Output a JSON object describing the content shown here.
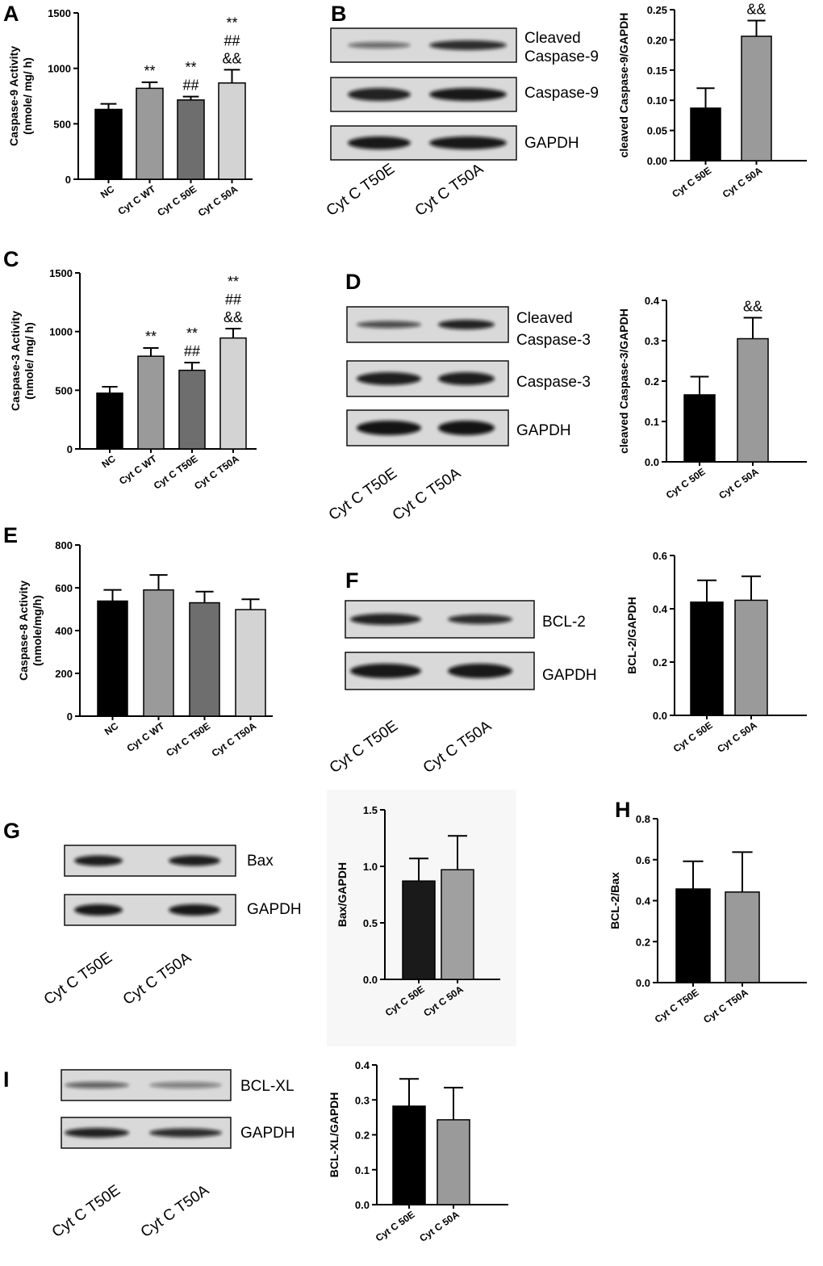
{
  "panel_labels": [
    "A",
    "B",
    "C",
    "D",
    "E",
    "F",
    "G",
    "H",
    "I"
  ],
  "chart_data": [
    {
      "id": "A",
      "type": "bar",
      "ylabel": "Caspase-9 Activity\n(nmole/ mg/ h)",
      "ylim": [
        0,
        1500
      ],
      "yticks": [
        "0",
        "500",
        "1000",
        "1500"
      ],
      "categories": [
        "NC",
        "Cyt C WT",
        "Cyt C 50E",
        "Cyt C 50A"
      ],
      "values": [
        630,
        820,
        715,
        868
      ],
      "errors": [
        50,
        55,
        30,
        120
      ],
      "colors": [
        "#000000",
        "#9a9a9a",
        "#6e6e6e",
        "#d3d3d3"
      ],
      "annotations": [
        [],
        [
          "**"
        ],
        [
          "**",
          "##"
        ],
        [
          "**",
          "##",
          "&&"
        ]
      ]
    },
    {
      "id": "B-chart",
      "type": "bar",
      "ylabel": "cleaved Caspase-9/GAPDH",
      "ylim": [
        0,
        0.25
      ],
      "yticks": [
        "0.00",
        "0.05",
        "0.10",
        "0.15",
        "0.20",
        "0.25"
      ],
      "categories": [
        "Cyt C 50E",
        "Cyt C 50A"
      ],
      "values": [
        0.087,
        0.206
      ],
      "errors": [
        0.033,
        0.026
      ],
      "colors": [
        "#000000",
        "#9a9a9a"
      ],
      "annotations": [
        [],
        [
          "&&"
        ]
      ]
    },
    {
      "id": "C",
      "type": "bar",
      "ylabel": "Caspase-3 Activity\n(nmole/ mg/ h)",
      "ylim": [
        0,
        1500
      ],
      "yticks": [
        "0",
        "500",
        "1000",
        "1500"
      ],
      "categories": [
        "NC",
        "Cyt C WT",
        "Cyt C T50E",
        "Cyt C T50A"
      ],
      "values": [
        475,
        790,
        670,
        945
      ],
      "errors": [
        55,
        70,
        65,
        80
      ],
      "colors": [
        "#000000",
        "#9a9a9a",
        "#6e6e6e",
        "#d3d3d3"
      ],
      "annotations": [
        [],
        [
          "**"
        ],
        [
          "**",
          "##"
        ],
        [
          "**",
          "##",
          "&&"
        ]
      ]
    },
    {
      "id": "D-chart",
      "type": "bar",
      "ylabel": "cleaved Caspase-3/GAPDH",
      "ylim": [
        0,
        0.4
      ],
      "yticks": [
        "0.0",
        "0.1",
        "0.2",
        "0.3",
        "0.4"
      ],
      "categories": [
        "Cyt C 50E",
        "Cyt C 50A"
      ],
      "values": [
        0.166,
        0.305
      ],
      "errors": [
        0.045,
        0.052
      ],
      "colors": [
        "#000000",
        "#9a9a9a"
      ],
      "annotations": [
        [],
        [
          "&&"
        ]
      ]
    },
    {
      "id": "E",
      "type": "bar",
      "ylabel": "Caspase-8 Activity\n(nmole/mg/h)",
      "ylim": [
        0,
        800
      ],
      "yticks": [
        "0",
        "200",
        "400",
        "600",
        "800"
      ],
      "categories": [
        "NC",
        "Cyt C WT",
        "Cyt C T50E",
        "Cyt C T50A"
      ],
      "values": [
        538,
        590,
        530,
        498
      ],
      "errors": [
        52,
        70,
        52,
        48
      ],
      "colors": [
        "#000000",
        "#9a9a9a",
        "#6e6e6e",
        "#d3d3d3"
      ],
      "annotations": [
        [],
        [],
        [],
        []
      ]
    },
    {
      "id": "F-chart",
      "type": "bar",
      "ylabel": "BCL-2/GAPDH",
      "ylim": [
        0,
        0.6
      ],
      "yticks": [
        "0.0",
        "0.2",
        "0.4",
        "0.6"
      ],
      "categories": [
        "Cyt C 50E",
        "Cyt C 50A"
      ],
      "values": [
        0.425,
        0.432
      ],
      "errors": [
        0.082,
        0.09
      ],
      "colors": [
        "#000000",
        "#9a9a9a"
      ],
      "annotations": [
        [],
        []
      ]
    },
    {
      "id": "G-chart",
      "type": "bar",
      "ylabel": "Bax/GAPDH",
      "ylim": [
        0,
        1.5
      ],
      "yticks": [
        "0.0",
        "0.5",
        "1.0",
        "1.5"
      ],
      "categories": [
        "Cyt C 50E",
        "Cyt C 50A"
      ],
      "values": [
        0.87,
        0.97
      ],
      "errors": [
        0.2,
        0.3
      ],
      "colors": [
        "#1a1a1a",
        "#a0a0a0"
      ],
      "annotations": [
        [],
        []
      ]
    },
    {
      "id": "H",
      "type": "bar",
      "ylabel": "BCL-2/Bax",
      "ylim": [
        0,
        0.8
      ],
      "yticks": [
        "0.0",
        "0.2",
        "0.4",
        "0.6",
        "0.8"
      ],
      "categories": [
        "Cyt C T50E",
        "Cyt C T50A"
      ],
      "values": [
        0.457,
        0.442
      ],
      "errors": [
        0.135,
        0.195
      ],
      "colors": [
        "#000000",
        "#9a9a9a"
      ],
      "annotations": [
        [],
        []
      ]
    },
    {
      "id": "I-chart",
      "type": "bar",
      "ylabel": "BCL-XL/GAPDH",
      "ylim": [
        0,
        0.4
      ],
      "yticks": [
        "0.0",
        "0.1",
        "0.2",
        "0.3",
        "0.4"
      ],
      "categories": [
        "Cyt C 50E",
        "Cyt C 50A"
      ],
      "values": [
        0.282,
        0.243
      ],
      "errors": [
        0.078,
        0.092
      ],
      "colors": [
        "#000000",
        "#9a9a9a"
      ],
      "annotations": [
        [],
        []
      ]
    }
  ],
  "blots": [
    {
      "id": "B-blot",
      "rows": [
        "Cleaved\nCaspase-9",
        "Caspase-9",
        "GAPDH"
      ],
      "lanes": [
        "Cyt C T50E",
        "Cyt C T50A"
      ]
    },
    {
      "id": "D-blot",
      "rows": [
        "Cleaved\nCaspase-3",
        "Caspase-3",
        "GAPDH"
      ],
      "lanes": [
        "Cyt C T50E",
        "Cyt C T50A"
      ]
    },
    {
      "id": "F-blot",
      "rows": [
        "BCL-2",
        "GAPDH"
      ],
      "lanes": [
        "Cyt C T50E",
        "Cyt C T50A"
      ]
    },
    {
      "id": "G-blot",
      "rows": [
        "Bax",
        "GAPDH"
      ],
      "lanes": [
        "Cyt C T50E",
        "Cyt C T50A"
      ]
    },
    {
      "id": "I-blot",
      "rows": [
        "BCL-XL",
        "GAPDH"
      ],
      "lanes": [
        "Cyt C T50E",
        "Cyt C T50A"
      ]
    }
  ]
}
